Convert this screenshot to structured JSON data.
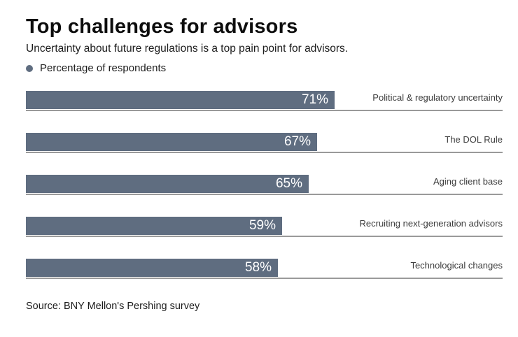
{
  "header": {
    "title": "Top challenges for advisors",
    "subtitle": "Uncertainty about future regulations is a top pain point for advisors."
  },
  "legend": {
    "label": "Percentage of respondents",
    "dot_color": "#5f6d80"
  },
  "chart_data": {
    "type": "bar",
    "orientation": "horizontal",
    "title": "Top challenges for advisors",
    "subtitle": "Uncertainty about future regulations is a top pain point for advisors.",
    "series_label": "Percentage of respondents",
    "categories": [
      "Political & regulatory uncertainty",
      "The DOL Rule",
      "Aging client base",
      "Recruiting next-generation advisors",
      "Technological changes"
    ],
    "values": [
      71,
      67,
      65,
      59,
      58
    ],
    "value_suffix": "%",
    "xlim": [
      0,
      100
    ],
    "grid": false,
    "legend_position": "top-left",
    "bar_color": "#5f6d80",
    "value_label_color": "#ffffff",
    "baseline_color": "#9a9a9a"
  },
  "footer": {
    "source": "Source: BNY Mellon's Pershing survey"
  }
}
